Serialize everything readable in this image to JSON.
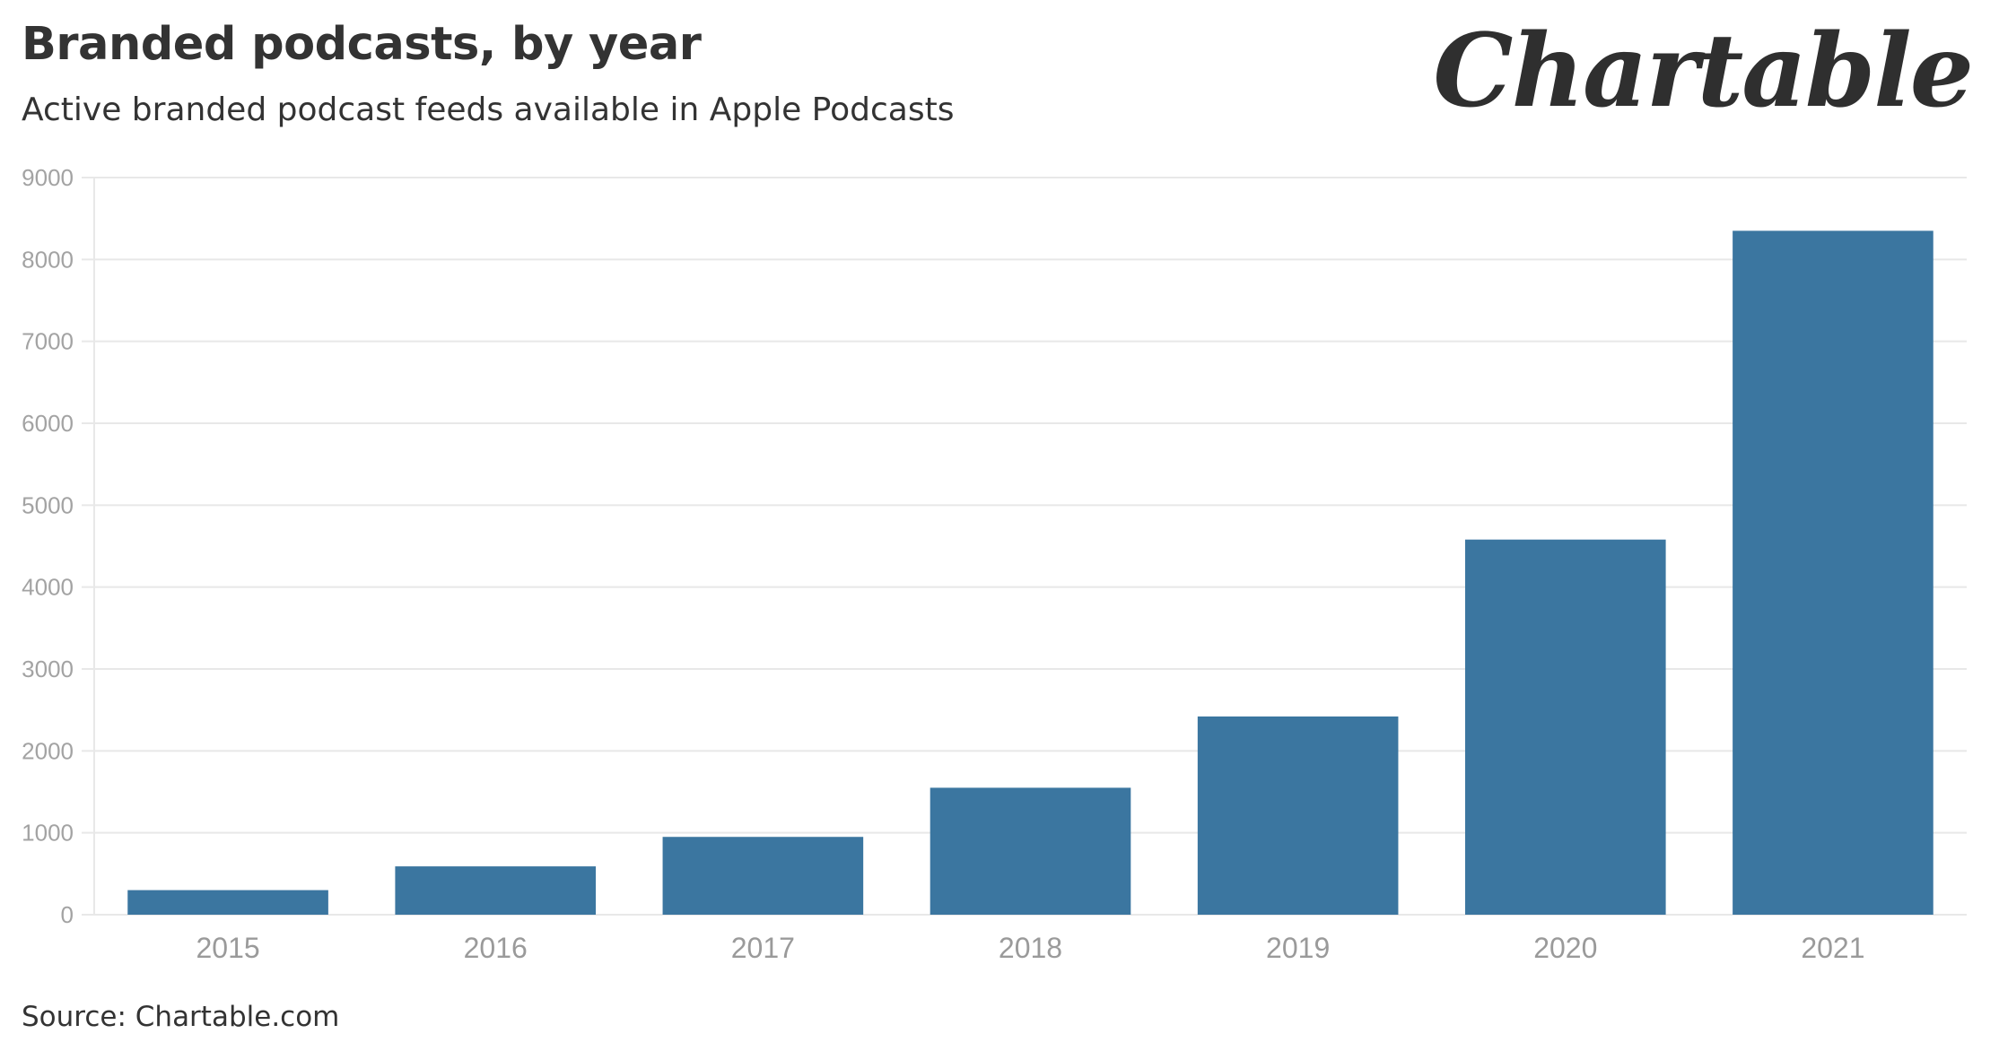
{
  "header": {
    "title": "Branded podcasts, by year",
    "subtitle": "Active branded podcast feeds available in Apple Podcasts",
    "logo": "Chartable"
  },
  "footer": {
    "source": "Source: Chartable.com"
  },
  "colors": {
    "bar": "#3b76a0",
    "grid": "#e8e8e8",
    "axis_text": "#a3a3a3"
  },
  "chart_data": {
    "type": "bar",
    "title": "Branded podcasts, by year",
    "subtitle": "Active branded podcast feeds available in Apple Podcasts",
    "xlabel": "",
    "ylabel": "",
    "categories": [
      "2015",
      "2016",
      "2017",
      "2018",
      "2019",
      "2020",
      "2021"
    ],
    "values": [
      300,
      590,
      950,
      1550,
      2420,
      4580,
      8350
    ],
    "ylim": [
      0,
      9000
    ],
    "yticks": [
      0,
      1000,
      2000,
      3000,
      4000,
      5000,
      6000,
      7000,
      8000,
      9000
    ],
    "grid": true,
    "legend": "none"
  }
}
